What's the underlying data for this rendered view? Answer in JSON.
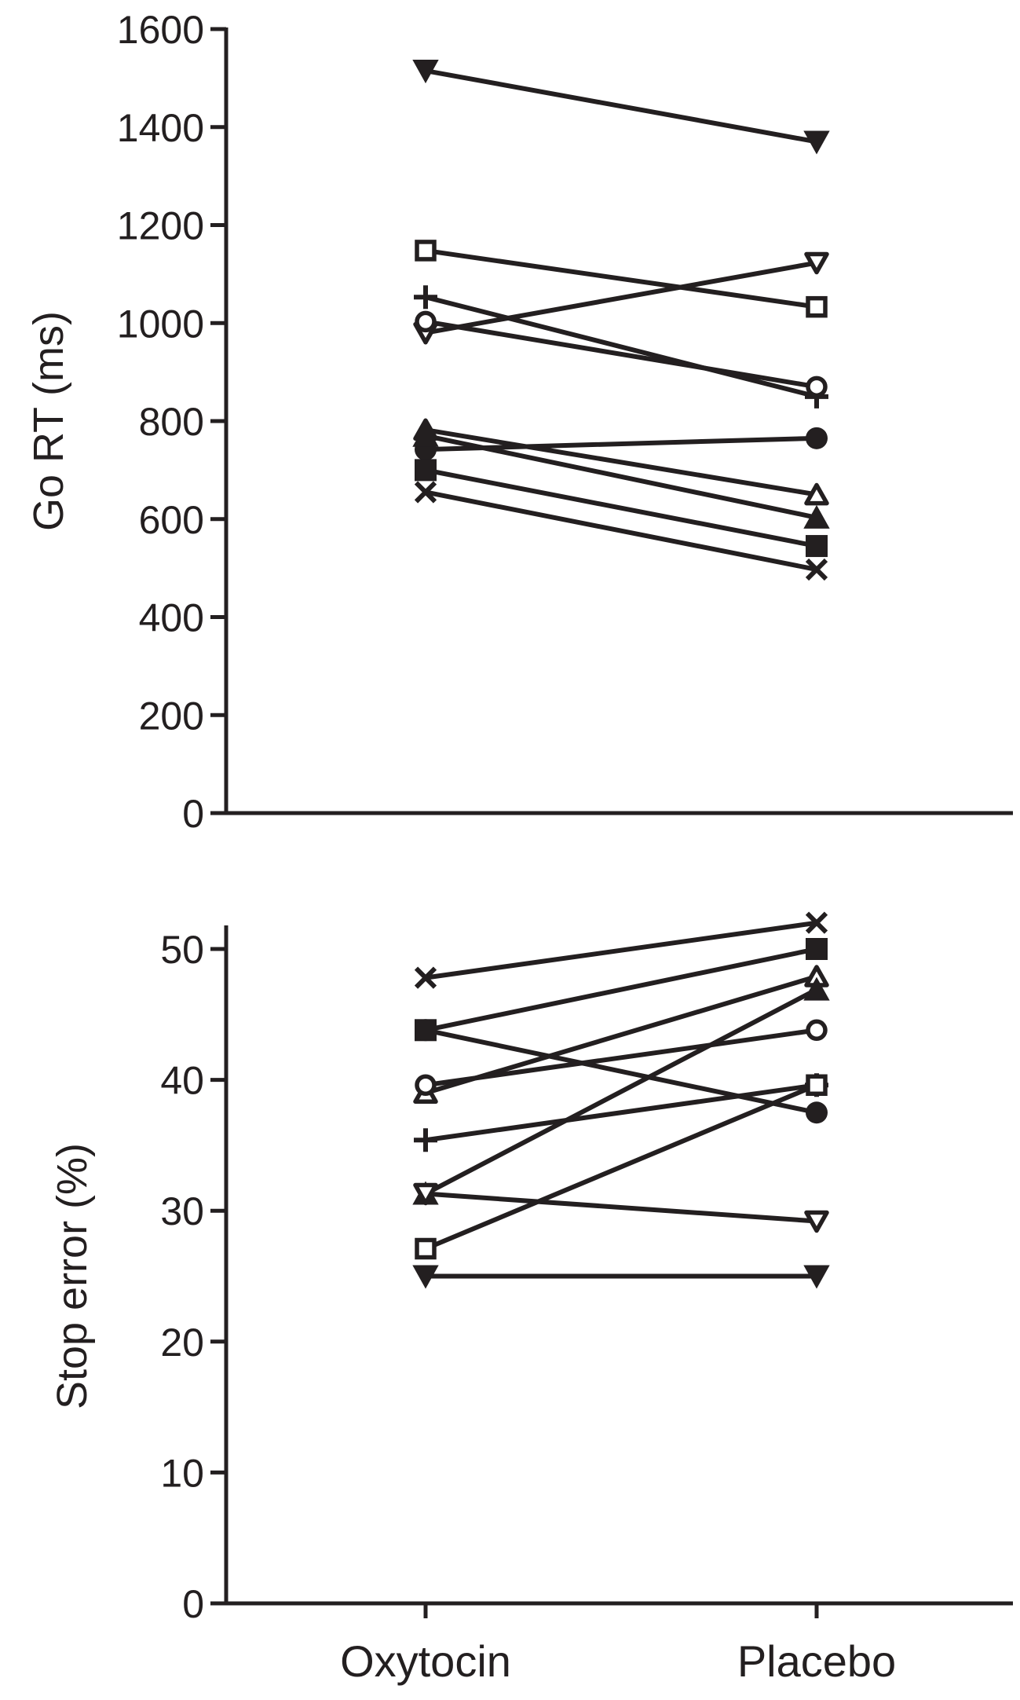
{
  "chart_data": [
    {
      "type": "line",
      "ylabel": "Go RT (ms)",
      "ylim": [
        0,
        1600
      ],
      "yticks": [
        0,
        200,
        400,
        600,
        800,
        1000,
        1200,
        1400,
        1600
      ],
      "categories": [
        "Oxytocin",
        "Placebo"
      ],
      "series": [
        {
          "marker": "triangle-down-filled",
          "values": [
            1515,
            1370
          ]
        },
        {
          "marker": "square-open",
          "values": [
            1148,
            1033
          ]
        },
        {
          "marker": "triangle-down-open",
          "values": [
            980,
            1123
          ]
        },
        {
          "marker": "plus",
          "values": [
            1053,
            850
          ]
        },
        {
          "marker": "circle-open",
          "values": [
            1003,
            870
          ]
        },
        {
          "marker": "circle-filled",
          "values": [
            742,
            765
          ]
        },
        {
          "marker": "triangle-up-open",
          "values": [
            782,
            650
          ]
        },
        {
          "marker": "triangle-up-filled",
          "values": [
            770,
            603
          ]
        },
        {
          "marker": "square-filled",
          "values": [
            700,
            545
          ]
        },
        {
          "marker": "cross",
          "values": [
            655,
            497
          ]
        }
      ]
    },
    {
      "type": "line",
      "ylabel": "Stop error (%)",
      "ylim": [
        0,
        50
      ],
      "yticks": [
        0,
        10,
        20,
        30,
        40,
        50
      ],
      "categories": [
        "Oxytocin",
        "Placebo"
      ],
      "series": [
        {
          "marker": "cross",
          "values": [
            47.8,
            52.0
          ]
        },
        {
          "marker": "square-filled",
          "values": [
            43.8,
            50.0
          ]
        },
        {
          "marker": "circle-filled",
          "values": [
            43.8,
            37.5
          ]
        },
        {
          "marker": "triangle-up-open",
          "values": [
            39.0,
            47.9
          ]
        },
        {
          "marker": "circle-open",
          "values": [
            39.6,
            43.8
          ]
        },
        {
          "marker": "plus",
          "values": [
            35.4,
            39.6
          ]
        },
        {
          "marker": "triangle-up-filled",
          "values": [
            31.3,
            46.9
          ]
        },
        {
          "marker": "triangle-down-open",
          "values": [
            31.3,
            29.2
          ]
        },
        {
          "marker": "square-open",
          "values": [
            27.1,
            39.6
          ]
        },
        {
          "marker": "triangle-down-filled",
          "values": [
            25.0,
            25.0
          ]
        }
      ]
    }
  ]
}
